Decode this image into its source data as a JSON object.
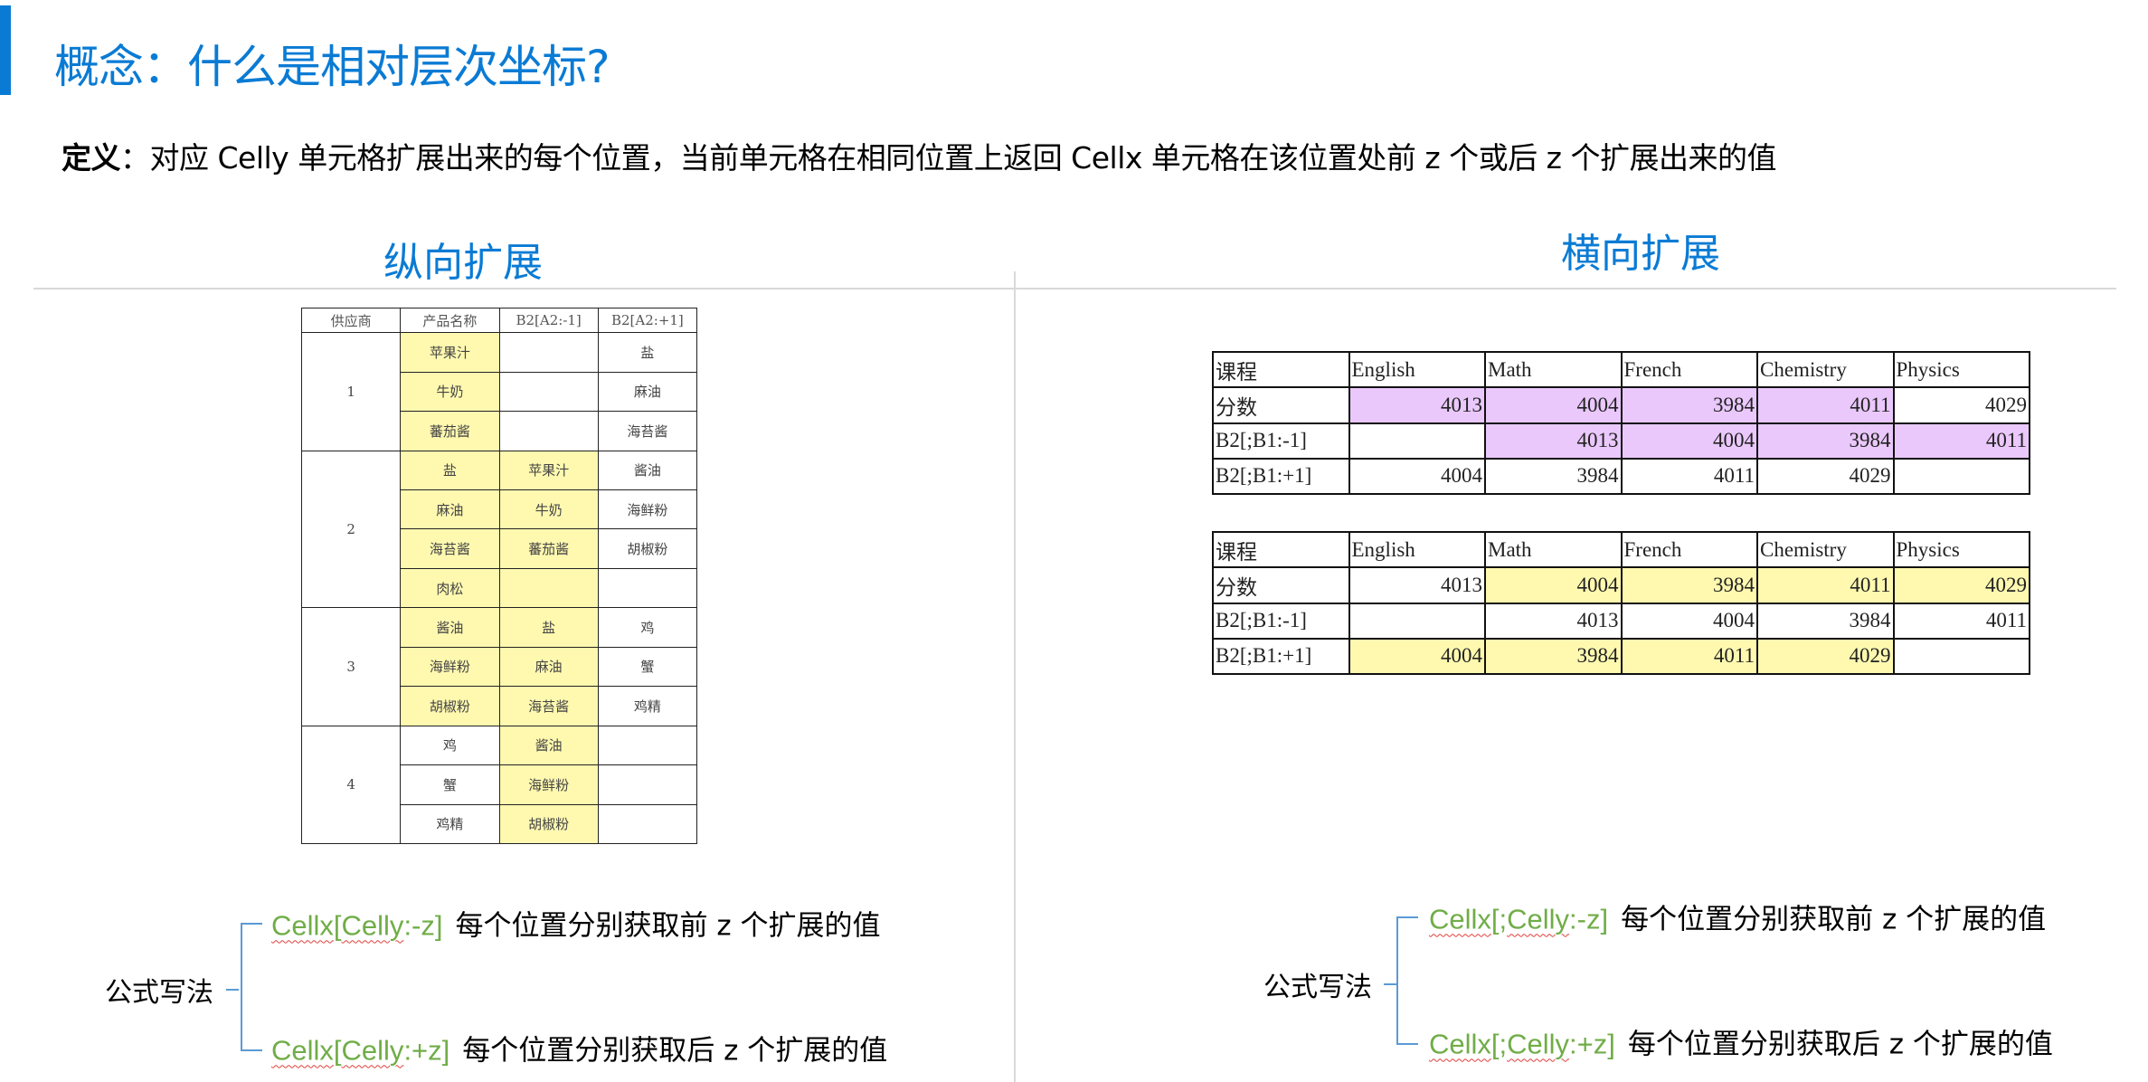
{
  "title": "概念：什么是相对层次坐标?",
  "definition": {
    "label": "定义",
    "text": "：对应 Celly 单元格扩展出来的每个位置，当前单元格在相同位置上返回 Cellx 单元格在该位置处前 z 个或后 z 个扩展出来的值"
  },
  "colors": {
    "accent": "#0a7bd4",
    "formula_green": "#70ad47",
    "highlight_yellow": "#fff9b0",
    "highlight_purple": "#eac8fb",
    "bracket_blue": "#5b9bd5"
  },
  "vertical": {
    "heading": "纵向扩展",
    "table": {
      "headers": [
        "供应商",
        "产品名称",
        "B2[A2:-1]",
        "B2[A2:+1]"
      ],
      "groups": [
        {
          "supplier": "1",
          "rows": [
            {
              "product": "苹果汁",
              "minus": "",
              "plus": "盐",
              "hl": [
                true,
                false
              ]
            },
            {
              "product": "牛奶",
              "minus": "",
              "plus": "麻油",
              "hl": [
                true,
                false
              ]
            },
            {
              "product": "蕃茄酱",
              "minus": "",
              "plus": "海苔酱",
              "hl": [
                true,
                false
              ]
            }
          ]
        },
        {
          "supplier": "2",
          "rows": [
            {
              "product": "盐",
              "minus": "苹果汁",
              "plus": "酱油",
              "hl": [
                true,
                true
              ]
            },
            {
              "product": "麻油",
              "minus": "牛奶",
              "plus": "海鲜粉",
              "hl": [
                true,
                true
              ]
            },
            {
              "product": "海苔酱",
              "minus": "蕃茄酱",
              "plus": "胡椒粉",
              "hl": [
                true,
                true
              ]
            },
            {
              "product": "肉松",
              "minus": "",
              "plus": "",
              "hl": [
                true,
                true
              ]
            }
          ]
        },
        {
          "supplier": "3",
          "rows": [
            {
              "product": "酱油",
              "minus": "盐",
              "plus": "鸡",
              "hl": [
                true,
                true
              ]
            },
            {
              "product": "海鲜粉",
              "minus": "麻油",
              "plus": "蟹",
              "hl": [
                true,
                true
              ]
            },
            {
              "product": "胡椒粉",
              "minus": "海苔酱",
              "plus": "鸡精",
              "hl": [
                true,
                true
              ]
            }
          ]
        },
        {
          "supplier": "4",
          "rows": [
            {
              "product": "鸡",
              "minus": "酱油",
              "plus": "",
              "hl": [
                false,
                true
              ]
            },
            {
              "product": "蟹",
              "minus": "海鲜粉",
              "plus": "",
              "hl": [
                false,
                true
              ]
            },
            {
              "product": "鸡精",
              "minus": "胡椒粉",
              "plus": "",
              "hl": [
                false,
                true
              ]
            }
          ]
        }
      ]
    },
    "formula_label": "公式写法",
    "formulas": [
      {
        "code_prefix": "Cellx",
        "code_mid": "[",
        "code_celly": "Celly",
        "code_suffix": ":-z]",
        "desc": "每个位置分别获取前 z 个扩展的值"
      },
      {
        "code_prefix": "Cellx",
        "code_mid": "[",
        "code_celly": "Celly",
        "code_suffix": ":+z]",
        "desc": "每个位置分别获取后 z 个扩展的值"
      }
    ]
  },
  "horizontal": {
    "heading": "横向扩展",
    "tables": [
      {
        "highlight": "purple",
        "rows": [
          {
            "cells": [
              "课程",
              "English",
              "Math",
              "French",
              "Chemistry",
              "Physics"
            ],
            "hl": [
              false,
              false,
              false,
              false,
              false,
              false
            ],
            "header": true
          },
          {
            "cells": [
              "分数",
              "4013",
              "4004",
              "3984",
              "4011",
              "4029"
            ],
            "hl": [
              false,
              true,
              true,
              true,
              true,
              false
            ]
          },
          {
            "cells": [
              "B2[;B1:-1]",
              "",
              "4013",
              "4004",
              "3984",
              "4011"
            ],
            "hl": [
              false,
              false,
              true,
              true,
              true,
              true
            ]
          },
          {
            "cells": [
              "B2[;B1:+1]",
              "4004",
              "3984",
              "4011",
              "4029",
              ""
            ],
            "hl": [
              false,
              false,
              false,
              false,
              false,
              false
            ]
          }
        ]
      },
      {
        "highlight": "yellow",
        "rows": [
          {
            "cells": [
              "课程",
              "English",
              "Math",
              "French",
              "Chemistry",
              "Physics"
            ],
            "hl": [
              false,
              false,
              false,
              false,
              false,
              false
            ],
            "header": true
          },
          {
            "cells": [
              "分数",
              "4013",
              "4004",
              "3984",
              "4011",
              "4029"
            ],
            "hl": [
              false,
              false,
              true,
              true,
              true,
              true
            ]
          },
          {
            "cells": [
              "B2[;B1:-1]",
              "",
              "4013",
              "4004",
              "3984",
              "4011"
            ],
            "hl": [
              false,
              false,
              false,
              false,
              false,
              false
            ]
          },
          {
            "cells": [
              "B2[;B1:+1]",
              "4004",
              "3984",
              "4011",
              "4029",
              ""
            ],
            "hl": [
              false,
              true,
              true,
              true,
              true,
              false
            ]
          }
        ]
      }
    ],
    "formula_label": "公式写法",
    "formulas": [
      {
        "code_prefix": "Cellx",
        "code_mid": "[;",
        "code_celly": "Celly",
        "code_suffix": ":-z]",
        "desc": "每个位置分别获取前 z 个扩展的值"
      },
      {
        "code_prefix": "Cellx",
        "code_mid": "[;",
        "code_celly": "Celly",
        "code_suffix": ":+z]",
        "desc": "每个位置分别获取后 z 个扩展的值"
      }
    ]
  }
}
